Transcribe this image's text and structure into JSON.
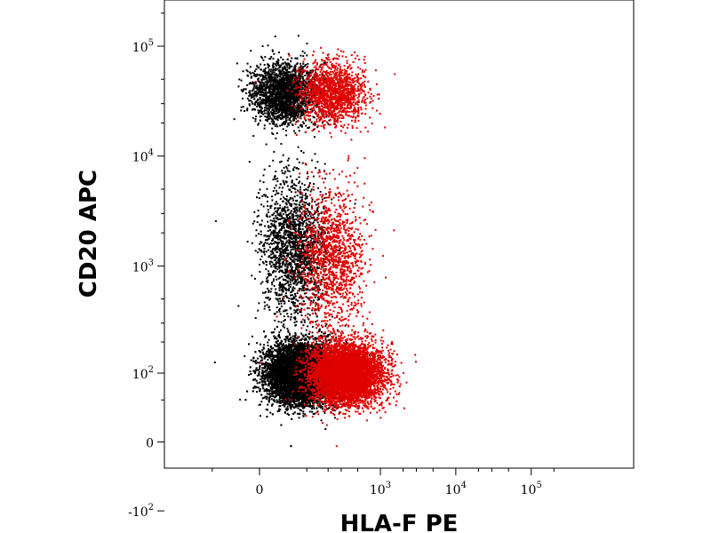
{
  "chart_data": {
    "type": "scatter",
    "title": "",
    "xlabel": "HLA-F PE",
    "ylabel": "CD20 APC",
    "x_scale": "biexponential",
    "y_scale": "biexponential",
    "x_ticks": [
      {
        "value": 0,
        "base": "0",
        "exp": ""
      },
      {
        "value": 1000,
        "base": "10",
        "exp": "3"
      },
      {
        "value": 10000,
        "base": "10",
        "exp": "4"
      },
      {
        "value": 100000,
        "base": "10",
        "exp": "5"
      }
    ],
    "y_ticks": [
      {
        "value": 100000,
        "base": "10",
        "exp": "5"
      },
      {
        "value": 10000,
        "base": "10",
        "exp": "4"
      },
      {
        "value": 1000,
        "base": "10",
        "exp": "3"
      },
      {
        "value": 100,
        "base": "10",
        "exp": "2"
      },
      {
        "value": 0,
        "base": "0",
        "exp": ""
      },
      {
        "value": -100,
        "base": "-10",
        "exp": "2"
      }
    ],
    "grid": false,
    "legend": "none",
    "series": [
      {
        "color": "#000000",
        "populations": [
          {
            "x_center": 80,
            "y_center": 100,
            "count": 9000
          },
          {
            "x_center": 60,
            "y_center": 1500,
            "count": 1800
          },
          {
            "x_center": 40,
            "y_center": 38000,
            "count": 2200
          }
        ]
      },
      {
        "color": "#e00000",
        "populations": [
          {
            "x_center": 350,
            "y_center": 100,
            "count": 5500
          },
          {
            "x_center": 220,
            "y_center": 1200,
            "count": 1300
          },
          {
            "x_center": 230,
            "y_center": 38000,
            "count": 1500
          }
        ]
      }
    ]
  }
}
